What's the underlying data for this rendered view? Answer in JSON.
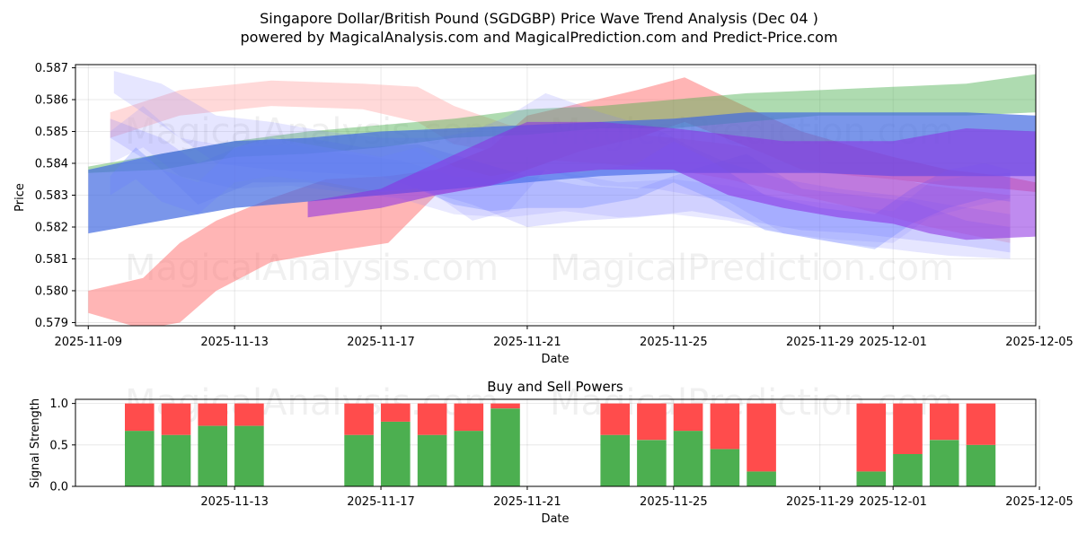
{
  "chart_data": [
    {
      "type": "area",
      "title_line1": "Singapore Dollar/British Pound (SGDGBP) Price Wave Trend Analysis (Dec 04 )",
      "title_line2": "powered by MagicalAnalysis.com and MagicalPrediction.com and Predict-Price.com",
      "xlabel": "Date",
      "ylabel": "Price",
      "x_domain_days": [
        -0.35,
        25.9
      ],
      "ylim": [
        0.5789,
        0.5871
      ],
      "x_ticks": [
        {
          "day": 0,
          "label": "2025-11-09"
        },
        {
          "day": 4,
          "label": "2025-11-13"
        },
        {
          "day": 8,
          "label": "2025-11-17"
        },
        {
          "day": 12,
          "label": "2025-11-21"
        },
        {
          "day": 16,
          "label": "2025-11-25"
        },
        {
          "day": 20,
          "label": "2025-11-29"
        },
        {
          "day": 22,
          "label": "2025-12-01"
        },
        {
          "day": 26,
          "label": "2025-12-05"
        }
      ],
      "y_ticks": [
        0.579,
        0.58,
        0.581,
        0.582,
        0.583,
        0.584,
        0.585,
        0.586,
        0.587
      ],
      "watermarks": [
        "MagicalAnalysis.com",
        "MagicalPrediction.com"
      ],
      "series": [
        {
          "name": "red-wave",
          "color": "#ff6b6b",
          "opacity": 0.5,
          "x": [
            0,
            1.5,
            2.5,
            3.5,
            5,
            6.5,
            8.2,
            9.5,
            11,
            12,
            13.5,
            15,
            16.3,
            17.2,
            18.5,
            19.5,
            21,
            22,
            23.5,
            25,
            25.9
          ],
          "upper": [
            0.58,
            0.5804,
            0.5815,
            0.5822,
            0.5829,
            0.5835,
            0.5836,
            0.5838,
            0.5845,
            0.5855,
            0.5859,
            0.5863,
            0.5867,
            0.5862,
            0.5855,
            0.585,
            0.5845,
            0.5842,
            0.5838,
            0.5836,
            0.5834
          ],
          "lower": [
            0.5793,
            0.5788,
            0.579,
            0.58,
            0.5809,
            0.5812,
            0.5815,
            0.583,
            0.5833,
            0.5838,
            0.5844,
            0.5848,
            0.5853,
            0.5849,
            0.5843,
            0.5838,
            0.5836,
            0.5835,
            0.5833,
            0.5832,
            0.5831
          ]
        },
        {
          "name": "red-wave-faint",
          "color": "#ffb3b3",
          "opacity": 0.5,
          "x": [
            0.6,
            2.5,
            5,
            7.5,
            9,
            10,
            11.5,
            12.5,
            14,
            16,
            17.5,
            19,
            21,
            23,
            25.2
          ],
          "upper": [
            0.5856,
            0.5863,
            0.5866,
            0.5865,
            0.5864,
            0.5858,
            0.5852,
            0.5851,
            0.585,
            0.5848,
            0.5846,
            0.5843,
            0.5838,
            0.5833,
            0.583
          ],
          "lower": [
            0.5848,
            0.5855,
            0.5858,
            0.5857,
            0.5853,
            0.5846,
            0.5843,
            0.5841,
            0.584,
            0.5838,
            0.5835,
            0.5831,
            0.5826,
            0.582,
            0.5815
          ]
        },
        {
          "name": "green-wave",
          "color": "#4caf50",
          "opacity": 0.45,
          "x": [
            0,
            2,
            4,
            6,
            8,
            10,
            12,
            14,
            16,
            18,
            20,
            22,
            24,
            25.9
          ],
          "upper": [
            0.5839,
            0.5843,
            0.5847,
            0.585,
            0.5852,
            0.5854,
            0.5857,
            0.5858,
            0.586,
            0.5862,
            0.5863,
            0.5864,
            0.5865,
            0.5868
          ],
          "lower": [
            0.5837,
            0.5838,
            0.5842,
            0.5843,
            0.5845,
            0.5848,
            0.5849,
            0.5851,
            0.5851,
            0.5853,
            0.5855,
            0.5855,
            0.5855,
            0.5856
          ]
        },
        {
          "name": "blue-band-faint-1",
          "color": "#8080ff",
          "opacity": 0.2,
          "x": [
            0.7,
            2,
            3.5,
            5,
            6.5,
            8,
            9.5,
            10.5,
            11.5,
            12.5,
            14,
            15.5,
            16.5,
            17.5,
            19,
            20.5,
            22,
            23.5,
            25.2
          ],
          "upper": [
            0.5869,
            0.5865,
            0.5855,
            0.5853,
            0.585,
            0.5848,
            0.5848,
            0.585,
            0.5855,
            0.5862,
            0.5856,
            0.5851,
            0.5845,
            0.584,
            0.5835,
            0.5832,
            0.583,
            0.5827,
            0.5824
          ],
          "lower": [
            0.5862,
            0.5852,
            0.584,
            0.5838,
            0.5837,
            0.5836,
            0.583,
            0.5822,
            0.5825,
            0.5838,
            0.5833,
            0.5832,
            0.583,
            0.5828,
            0.5818,
            0.5815,
            0.5813,
            0.5811,
            0.581
          ]
        },
        {
          "name": "blue-band-faint-2",
          "color": "#7070ff",
          "opacity": 0.2,
          "x": [
            0.6,
            2,
            3,
            4.5,
            6,
            7.5,
            9,
            10.5,
            12,
            13.5,
            15,
            16.5,
            18,
            19.5,
            21,
            22.5,
            24,
            25.2
          ],
          "upper": [
            0.5854,
            0.5848,
            0.584,
            0.5847,
            0.5848,
            0.5845,
            0.5846,
            0.5841,
            0.5836,
            0.5833,
            0.5832,
            0.5838,
            0.5843,
            0.5832,
            0.583,
            0.5828,
            0.5822,
            0.582
          ],
          "lower": [
            0.5848,
            0.5838,
            0.5827,
            0.5834,
            0.5834,
            0.5831,
            0.5832,
            0.5827,
            0.582,
            0.5822,
            0.5823,
            0.5825,
            0.5822,
            0.5819,
            0.5818,
            0.5816,
            0.5814,
            0.5812
          ]
        },
        {
          "name": "blue-band-faint-3",
          "color": "#9090ff",
          "opacity": 0.2,
          "x": [
            0.6,
            1.5,
            2.5,
            4,
            5.5,
            7,
            8.5,
            10,
            11.5,
            13,
            14.5,
            16,
            17.5,
            19,
            20.5,
            22,
            23,
            24,
            25.2
          ],
          "upper": [
            0.585,
            0.5858,
            0.5848,
            0.5845,
            0.5846,
            0.5843,
            0.5841,
            0.5836,
            0.5835,
            0.5837,
            0.5834,
            0.5835,
            0.5833,
            0.5829,
            0.5827,
            0.5825,
            0.5834,
            0.5836,
            0.5837
          ],
          "lower": [
            0.584,
            0.5845,
            0.5836,
            0.5832,
            0.5833,
            0.5831,
            0.5829,
            0.5824,
            0.5823,
            0.5825,
            0.5823,
            0.5824,
            0.5822,
            0.5818,
            0.5816,
            0.5815,
            0.5823,
            0.5826,
            0.5829
          ]
        },
        {
          "name": "blue-wave-main",
          "color": "#4169e1",
          "opacity": 0.7,
          "x": [
            0,
            2,
            4,
            6,
            8,
            10,
            12,
            14,
            16,
            18,
            20,
            22,
            24,
            25.9
          ],
          "upper": [
            0.5838,
            0.5843,
            0.5847,
            0.5848,
            0.585,
            0.5851,
            0.5852,
            0.5853,
            0.5854,
            0.5856,
            0.5856,
            0.5856,
            0.5856,
            0.5855
          ],
          "lower": [
            0.5818,
            0.5822,
            0.5826,
            0.5828,
            0.583,
            0.5832,
            0.5834,
            0.5836,
            0.5837,
            0.5837,
            0.5837,
            0.5836,
            0.5836,
            0.5836
          ]
        },
        {
          "name": "blue-diamond-wave",
          "color": "#6a82ff",
          "opacity": 0.3,
          "x": [
            0.6,
            1.3,
            2,
            3,
            4,
            5,
            6.5,
            8,
            9,
            10,
            11,
            12,
            13.5,
            15,
            16,
            17,
            18.5,
            20,
            21.5,
            22.5,
            23.5,
            24.5,
            25.2
          ],
          "upper": [
            0.5836,
            0.5845,
            0.5838,
            0.5834,
            0.5845,
            0.5848,
            0.5845,
            0.5842,
            0.5845,
            0.5839,
            0.5836,
            0.5838,
            0.5837,
            0.584,
            0.5847,
            0.5841,
            0.583,
            0.5826,
            0.5824,
            0.5832,
            0.5838,
            0.584,
            0.5838
          ],
          "lower": [
            0.583,
            0.5835,
            0.5828,
            0.5824,
            0.5834,
            0.5836,
            0.5834,
            0.5831,
            0.5832,
            0.5827,
            0.5825,
            0.5826,
            0.5826,
            0.5829,
            0.5834,
            0.5829,
            0.5819,
            0.5816,
            0.5813,
            0.5821,
            0.5826,
            0.5829,
            0.5828
          ]
        },
        {
          "name": "purple-wave",
          "color": "#8a2be2",
          "opacity": 0.55,
          "x": [
            6,
            8,
            9.5,
            11,
            12,
            14,
            16,
            17.5,
            19,
            20.5,
            22,
            23,
            24,
            25.9
          ],
          "upper": [
            0.5828,
            0.5832,
            0.584,
            0.5848,
            0.5853,
            0.5853,
            0.5851,
            0.5849,
            0.5847,
            0.5847,
            0.5847,
            0.5849,
            0.5851,
            0.585
          ],
          "lower": [
            0.5823,
            0.5826,
            0.583,
            0.5833,
            0.5836,
            0.5838,
            0.5838,
            0.583,
            0.5826,
            0.5823,
            0.5821,
            0.5818,
            0.5816,
            0.5817
          ]
        }
      ]
    },
    {
      "type": "bar",
      "title": "Buy and Sell Powers",
      "xlabel": "Date",
      "ylabel": "Signal Strength",
      "x_domain_days": [
        -0.35,
        25.9
      ],
      "ylim": [
        0,
        1.05
      ],
      "y_ticks": [
        0.0,
        0.5,
        1.0
      ],
      "x_ticks": [
        {
          "day": 4,
          "label": "2025-11-13"
        },
        {
          "day": 8,
          "label": "2025-11-17"
        },
        {
          "day": 12,
          "label": "2025-11-21"
        },
        {
          "day": 16,
          "label": "2025-11-25"
        },
        {
          "day": 20,
          "label": "2025-11-29"
        },
        {
          "day": 22,
          "label": "2025-12-01"
        },
        {
          "day": 26,
          "label": "2025-12-05"
        }
      ],
      "watermarks": [
        "MagicalAnalysis.com",
        "MagicalPrediction.com"
      ],
      "buy_color": "#4caf50",
      "sell_color": "#ff4c4c",
      "bar_width_days": 0.8,
      "series": [
        {
          "name": "Buy",
          "days": [
            1.4,
            2.4,
            3.4,
            4.4,
            7.4,
            8.4,
            9.4,
            10.4,
            11.4,
            14.4,
            15.4,
            16.4,
            17.4,
            18.4,
            21.4,
            22.4,
            23.4,
            24.4
          ],
          "values": [
            0.67,
            0.62,
            0.73,
            0.73,
            0.62,
            0.78,
            0.62,
            0.67,
            0.94,
            0.62,
            0.56,
            0.67,
            0.45,
            0.18,
            0.18,
            0.39,
            0.56,
            0.5
          ]
        },
        {
          "name": "Sell",
          "days": [
            1.4,
            2.4,
            3.4,
            4.4,
            7.4,
            8.4,
            9.4,
            10.4,
            11.4,
            14.4,
            15.4,
            16.4,
            17.4,
            18.4,
            21.4,
            22.4,
            23.4,
            24.4
          ],
          "values": [
            0.33,
            0.38,
            0.27,
            0.27,
            0.38,
            0.22,
            0.38,
            0.33,
            0.06,
            0.38,
            0.44,
            0.33,
            0.55,
            0.82,
            0.82,
            0.61,
            0.44,
            0.5
          ]
        }
      ]
    }
  ]
}
